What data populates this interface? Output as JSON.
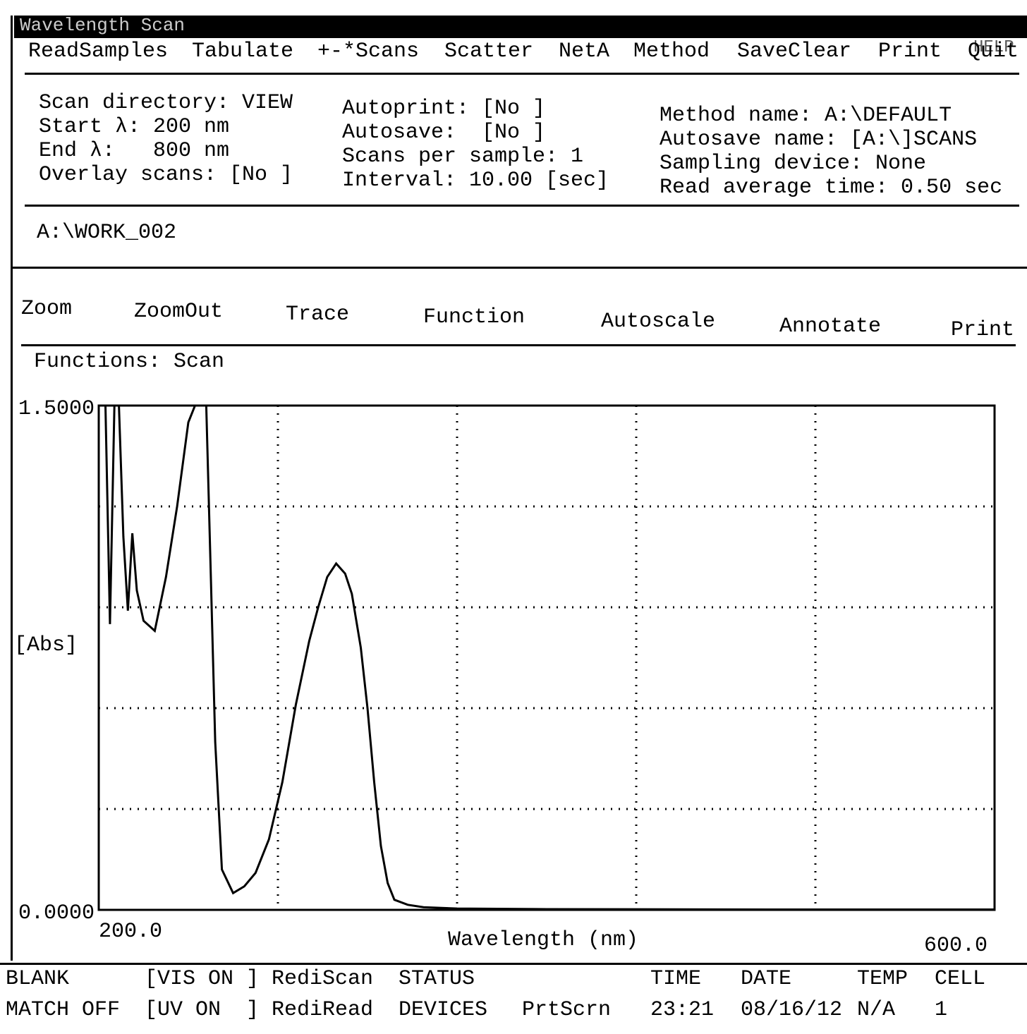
{
  "title_bar": {
    "title": "Wavelength Scan",
    "help": "HELP"
  },
  "menu": [
    "ReadSamples",
    "Tabulate",
    "+-*Scans",
    "Scatter",
    "NetA",
    "Method",
    "SaveClear",
    "Print",
    "Quit"
  ],
  "settings": [
    [
      "Scan directory: VIEW",
      "Start λ: 200 nm",
      "End λ:   800 nm",
      "Overlay scans: [No ]"
    ],
    [
      "Autoprint: [No ]",
      "Autosave:  [No ]",
      "Scans per sample: 1",
      "Interval: 10.00 [sec]"
    ],
    [
      "Method name: A:\\DEFAULT",
      "Autosave name: [A:\\]SCANS",
      "Sampling device: None",
      "Read average time: 0.50 sec"
    ]
  ],
  "file": "A:\\WORK_002",
  "toolbar": [
    "Zoom",
    "ZoomOut",
    "Trace",
    "Function",
    "Autoscale",
    "Annotate",
    "Print"
  ],
  "functions": "Functions: Scan",
  "chart_data": {
    "type": "line",
    "y_label": "[Abs]",
    "x_label": "Wavelength (nm)",
    "color": "#000000",
    "x": [
      200,
      203,
      205,
      207,
      209,
      211,
      213,
      215,
      217,
      220,
      225,
      230,
      235,
      240,
      243,
      248,
      250,
      252,
      255,
      260,
      265,
      270,
      276,
      282,
      288,
      294,
      298,
      302,
      306,
      310,
      313,
      317,
      320,
      323,
      326,
      329,
      332,
      338,
      345,
      360,
      400,
      500,
      600
    ],
    "values": [
      1.5,
      1.5,
      0.85,
      1.5,
      1.5,
      1.11,
      0.89,
      1.12,
      0.95,
      0.86,
      0.83,
      0.99,
      1.2,
      1.45,
      1.5,
      1.5,
      1.0,
      0.5,
      0.12,
      0.05,
      0.07,
      0.11,
      0.21,
      0.38,
      0.61,
      0.8,
      0.9,
      0.99,
      1.03,
      1.0,
      0.94,
      0.78,
      0.6,
      0.38,
      0.19,
      0.08,
      0.03,
      0.015,
      0.008,
      0.004,
      0.002,
      0.001,
      0.001
    ],
    "xlim": [
      200,
      600
    ],
    "ylim": [
      0,
      1.5
    ],
    "xticks": [
      {
        "value": 200,
        "label": "200.0"
      },
      {
        "value": 600,
        "label": "600.0"
      }
    ],
    "yticks": [
      {
        "value": 1.5,
        "label": "1.5000"
      },
      {
        "value": 0,
        "label": "0.0000"
      }
    ]
  },
  "status": [
    [
      "BLANK",
      "MATCH OFF"
    ],
    [
      "[VIS ON ] RediScan",
      "[UV ON  ] RediRead"
    ],
    [
      "STATUS",
      "DEVICES"
    ],
    [
      "",
      "PrtScrn"
    ],
    [
      "TIME",
      "23:21"
    ],
    [
      "DATE",
      "08/16/12"
    ],
    [
      "TEMP",
      "N/A"
    ],
    [
      "CELL",
      "1"
    ]
  ]
}
